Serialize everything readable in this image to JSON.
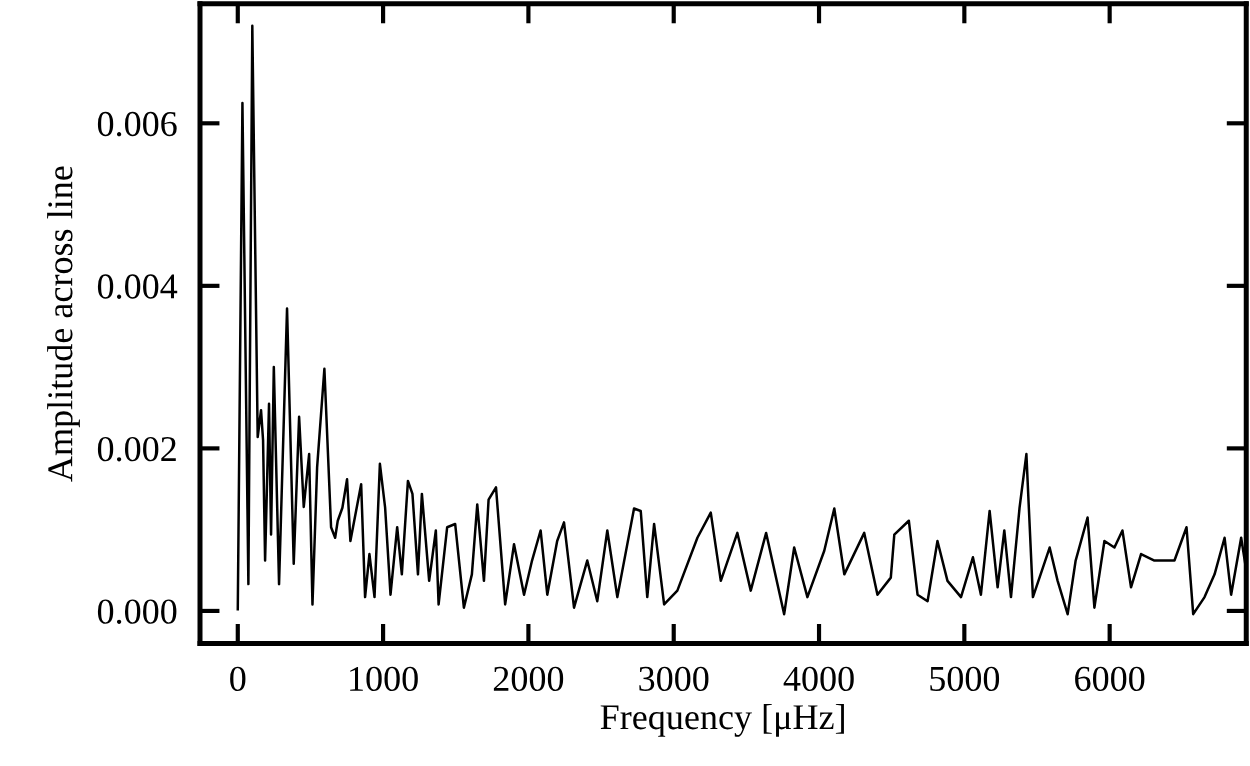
{
  "chart_data": {
    "type": "line",
    "xlabel": "Frequency [μHz]",
    "ylabel": "Amplitude across line",
    "xlim": [
      -260,
      6940
    ],
    "ylim": [
      -0.0004,
      0.00747
    ],
    "xticks": [
      0,
      1000,
      2000,
      3000,
      4000,
      5000,
      6000
    ],
    "yticks": [
      {
        "value": 0,
        "label": "0.000"
      },
      {
        "value": 0.002,
        "label": "0.002"
      },
      {
        "value": 0.004,
        "label": "0.004"
      },
      {
        "value": 0.006,
        "label": "0.006"
      }
    ],
    "grid": false,
    "line_style": "solid",
    "marker": "none",
    "series": [
      {
        "color": "#000000",
        "x": [
          0,
          32,
          73,
          100,
          137,
          160,
          174,
          188,
          215,
          229,
          248,
          284,
          339,
          385,
          422,
          454,
          491,
          514,
          546,
          596,
          642,
          670,
          688,
          720,
          752,
          775,
          849,
          876,
          906,
          941,
          978,
          1014,
          1051,
          1097,
          1129,
          1171,
          1202,
          1240,
          1267,
          1317,
          1363,
          1382,
          1441,
          1496,
          1556,
          1611,
          1648,
          1694,
          1726,
          1777,
          1840,
          1901,
          1970,
          2025,
          2084,
          2130,
          2198,
          2245,
          2314,
          2405,
          2474,
          2543,
          2612,
          2727,
          2773,
          2818,
          2865,
          2934,
          3025,
          3163,
          3255,
          3324,
          3438,
          3530,
          3636,
          3760,
          3829,
          3920,
          4036,
          4105,
          4174,
          4311,
          4402,
          4494,
          4518,
          4618,
          4678,
          4747,
          4815,
          4884,
          4977,
          5059,
          5114,
          5174,
          5229,
          5275,
          5321,
          5380,
          5427,
          5472,
          5587,
          5642,
          5711,
          5766,
          5848,
          5895,
          5964,
          6033,
          6088,
          6147,
          6216,
          6308,
          6446,
          6529,
          6575,
          6653,
          6722,
          6791,
          6836,
          6905,
          6940
        ],
        "values": [
          2e-05,
          0.00625,
          0.00033,
          0.0072,
          0.00214,
          0.00247,
          0.0021,
          0.00062,
          0.00255,
          0.00094,
          0.003,
          0.00033,
          0.00372,
          0.00058,
          0.00239,
          0.00128,
          0.00193,
          8e-05,
          0.00177,
          0.00298,
          0.00103,
          0.0009,
          0.00111,
          0.00127,
          0.00162,
          0.00086,
          0.00156,
          0.00017,
          0.0007,
          0.00017,
          0.00181,
          0.00127,
          0.0002,
          0.00103,
          0.00045,
          0.0016,
          0.00144,
          0.00045,
          0.00144,
          0.00037,
          0.00099,
          8e-05,
          0.00103,
          0.00107,
          4e-05,
          0.00045,
          0.00131,
          0.00037,
          0.00137,
          0.00152,
          8e-05,
          0.00082,
          0.0002,
          0.00062,
          0.00099,
          0.0002,
          0.00086,
          0.00109,
          4e-05,
          0.00062,
          0.00012,
          0.00099,
          0.00017,
          0.00126,
          0.00123,
          0.00017,
          0.00107,
          8e-05,
          0.00025,
          0.0009,
          0.00121,
          0.00037,
          0.00096,
          0.00025,
          0.00096,
          -4e-05,
          0.00078,
          0.00017,
          0.00074,
          0.00126,
          0.00045,
          0.00096,
          0.0002,
          0.00041,
          0.00094,
          0.00111,
          0.0002,
          0.00012,
          0.00086,
          0.00037,
          0.00017,
          0.00066,
          0.0002,
          0.00123,
          0.00029,
          0.00099,
          0.00017,
          0.00127,
          0.00193,
          0.00017,
          0.00078,
          0.00037,
          -4e-05,
          0.00062,
          0.00115,
          4e-05,
          0.00086,
          0.00078,
          0.00099,
          0.00029,
          0.0007,
          0.00062,
          0.00062,
          0.00103,
          -4e-05,
          0.00017,
          0.00045,
          0.0009,
          0.0002,
          0.0009,
          0.0005
        ]
      }
    ]
  }
}
